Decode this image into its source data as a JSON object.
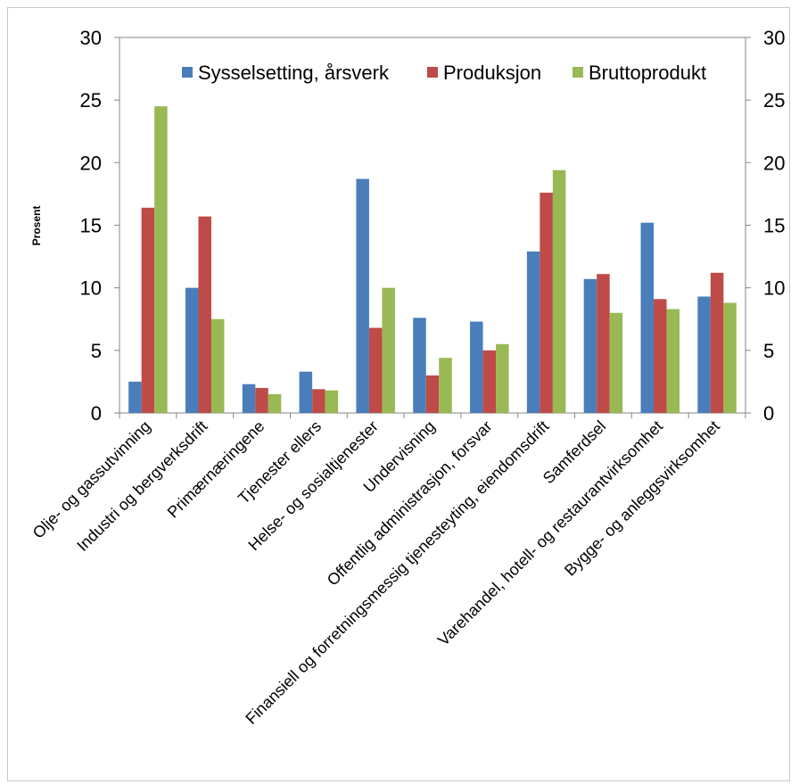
{
  "chart_data": {
    "type": "bar",
    "ylabel": "Prosent",
    "xlabel": "",
    "ylim": [
      0,
      30
    ],
    "yticks": [
      0,
      5,
      10,
      15,
      20,
      25,
      30
    ],
    "secondary_axis": true,
    "legend_position": "top",
    "grid": false,
    "categories": [
      "Olje- og gassutvinning",
      "Industri og bergverksdrift",
      "Primærnæringene",
      "Tjenester ellers",
      "Helse- og sosialtjenester",
      "Undervisning",
      "Offentlig administrasjon, forsvar",
      "Finansiell og forretningsmessig tjenesteyting, eiendomsdrift",
      "Samferdsel",
      "Varehandel, hotell- og restaurantvirksomhet",
      "Bygge- og anleggsvirksomhet"
    ],
    "series": [
      {
        "name": "Sysselsetting, årsverk",
        "color": "#4a7ebb",
        "values": [
          2.5,
          10.0,
          2.3,
          3.3,
          18.7,
          7.6,
          7.3,
          12.9,
          10.7,
          15.2,
          9.3
        ]
      },
      {
        "name": "Produksjon",
        "color": "#be4b48",
        "values": [
          16.4,
          15.7,
          2.0,
          1.9,
          6.8,
          3.0,
          5.0,
          17.6,
          11.1,
          9.1,
          11.2
        ]
      },
      {
        "name": "Bruttoprodukt",
        "color": "#98b954",
        "values": [
          24.5,
          7.5,
          1.5,
          1.8,
          10.0,
          4.4,
          5.5,
          19.4,
          8.0,
          8.3,
          8.8
        ]
      }
    ]
  }
}
